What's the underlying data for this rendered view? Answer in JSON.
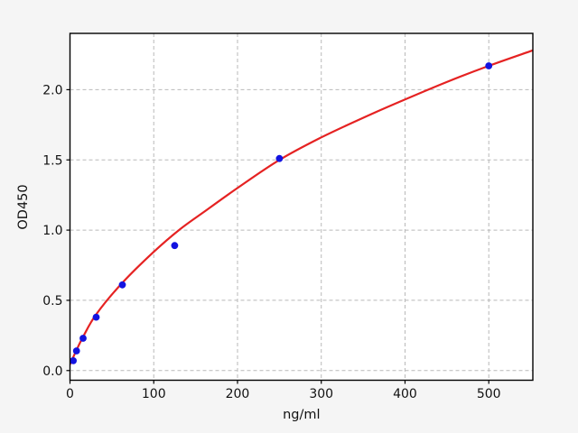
{
  "figure": {
    "background_color": "#f5f5f5",
    "plot_background_color": "#ffffff",
    "spine_color": "#000000",
    "grid_color": "#b9b9b9",
    "tick_text_color": "#111111"
  },
  "chart_data": {
    "type": "scatter",
    "title": "",
    "xlabel": "ng/ml",
    "ylabel": "OD450",
    "xlim": [
      0,
      552.6
    ],
    "ylim": [
      -0.069,
      2.401
    ],
    "grid": "dashed, both axes",
    "legend": "none",
    "x_ticks": [
      0,
      100,
      200,
      300,
      400,
      500
    ],
    "x_tick_labels": [
      "0",
      "100",
      "200",
      "300",
      "400",
      "500"
    ],
    "y_ticks": [
      0.0,
      0.5,
      1.0,
      1.5,
      2.0
    ],
    "y_tick_labels": [
      "0.0",
      "0.5",
      "1.0",
      "1.5",
      "2.0"
    ],
    "series": [
      {
        "name": "standard-points",
        "kind": "scatter",
        "color": "#1313e0",
        "marker": "circle",
        "x": [
          3.9,
          7.8,
          15.6,
          31.25,
          62.5,
          125,
          250,
          500
        ],
        "y": [
          0.07,
          0.14,
          0.23,
          0.38,
          0.61,
          0.89,
          1.51,
          2.17
        ]
      },
      {
        "name": "fit-curve",
        "kind": "line",
        "color": "#e52222",
        "points": [
          [
            0,
            0.045
          ],
          [
            7.8,
            0.145
          ],
          [
            15.6,
            0.24
          ],
          [
            31.25,
            0.4
          ],
          [
            62.5,
            0.625
          ],
          [
            100,
            0.845
          ],
          [
            130,
            1.0
          ],
          [
            160,
            1.13
          ],
          [
            200,
            1.3
          ],
          [
            250,
            1.5
          ],
          [
            300,
            1.66
          ],
          [
            350,
            1.8
          ],
          [
            400,
            1.93
          ],
          [
            450,
            2.055
          ],
          [
            500,
            2.17
          ],
          [
            552.6,
            2.28
          ]
        ]
      }
    ]
  }
}
